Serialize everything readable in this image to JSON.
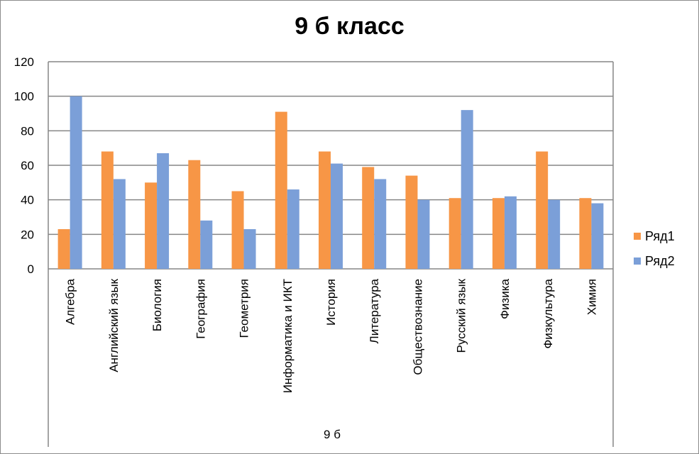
{
  "chart_data": {
    "type": "bar",
    "title": "9 б класс",
    "group_label": "9 б",
    "categories": [
      "Алгебра",
      "Английский язык",
      "Биология",
      "География",
      "Геометрия",
      "Информатика и ИКТ",
      "История",
      "Литература",
      "Обществознание",
      "Русский язык",
      "Физика",
      "Физкультура",
      "Химия"
    ],
    "series": [
      {
        "name": "Ряд1",
        "color": "#f79646",
        "values": [
          23,
          68,
          50,
          63,
          45,
          91,
          68,
          59,
          54,
          41,
          41,
          68,
          41
        ]
      },
      {
        "name": "Ряд2",
        "color": "#7b9fd8",
        "values": [
          100,
          52,
          67,
          28,
          23,
          46,
          61,
          52,
          40,
          92,
          42,
          40,
          38
        ]
      }
    ],
    "ylim": [
      0,
      120
    ],
    "yticks": [
      0,
      20,
      40,
      60,
      80,
      100,
      120
    ],
    "ytick_labels": [
      "0",
      "20",
      "40",
      "60",
      "80",
      "100",
      "120"
    ],
    "grid": true,
    "legend": "right"
  }
}
